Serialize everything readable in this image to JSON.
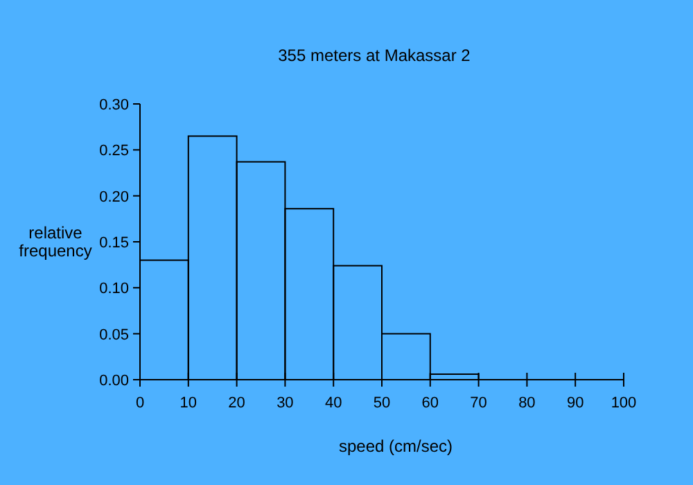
{
  "chart_data": {
    "type": "histogram",
    "title": "355 meters at Makassar 2",
    "xlabel": "speed (cm/sec)",
    "ylabel": "relative\nfrequency",
    "bins": [
      0,
      10,
      20,
      30,
      40,
      50,
      60,
      70,
      80,
      90,
      100
    ],
    "values": [
      0.13,
      0.265,
      0.237,
      0.186,
      0.124,
      0.05,
      0.006,
      0,
      0,
      0
    ],
    "color": "#000000",
    "xlim": [
      0,
      100
    ],
    "xticks": [
      0,
      10,
      20,
      30,
      40,
      50,
      60,
      70,
      80,
      90,
      100
    ],
    "ylim": [
      0,
      0.3
    ],
    "yticks": [
      {
        "value": 0,
        "label": "0.00"
      },
      {
        "value": 0.05,
        "label": "0.05"
      },
      {
        "value": 0.1,
        "label": "0.10"
      },
      {
        "value": 0.15,
        "label": "0.15"
      },
      {
        "value": 0.2,
        "label": "0.20"
      },
      {
        "value": 0.25,
        "label": "0.25"
      },
      {
        "value": 0.3,
        "label": "0.30"
      }
    ],
    "grid": false
  }
}
